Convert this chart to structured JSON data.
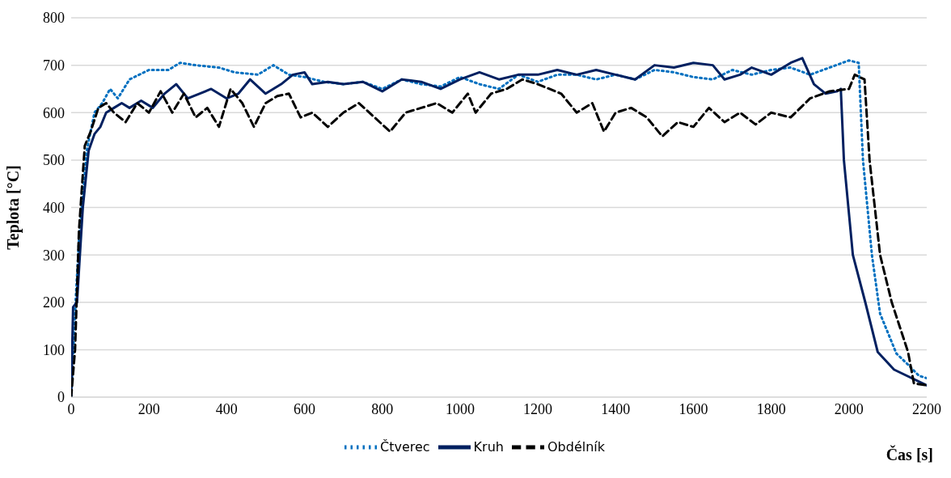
{
  "chart_data": {
    "type": "line",
    "xlabel": "Čas [s]",
    "ylabel": "Teplota [°C]",
    "xlim": [
      0,
      2200
    ],
    "xticks": [
      0,
      200,
      400,
      600,
      800,
      1000,
      1200,
      1400,
      1600,
      1800,
      2000,
      2200
    ],
    "ylim": [
      0,
      800
    ],
    "yticks": [
      0,
      100,
      200,
      300,
      400,
      500,
      600,
      700,
      800
    ],
    "grid": "y",
    "legend": "bottom",
    "marker": "none",
    "series": [
      {
        "name": "Čtverec",
        "color": "#0070c0",
        "line_style": "dotted",
        "x": [
          0,
          10,
          20,
          40,
          60,
          80,
          100,
          120,
          150,
          200,
          250,
          280,
          320,
          380,
          420,
          480,
          520,
          560,
          600,
          650,
          700,
          750,
          800,
          850,
          900,
          950,
          1000,
          1050,
          1100,
          1150,
          1200,
          1250,
          1300,
          1350,
          1400,
          1450,
          1500,
          1550,
          1600,
          1650,
          1700,
          1750,
          1800,
          1850,
          1900,
          1950,
          2000,
          2025,
          2036,
          2059,
          2080,
          2122,
          2150,
          2180,
          2200
        ],
        "values": [
          0,
          180,
          330,
          520,
          600,
          620,
          650,
          630,
          670,
          690,
          690,
          705,
          700,
          695,
          685,
          680,
          700,
          680,
          675,
          665,
          660,
          665,
          650,
          670,
          660,
          655,
          675,
          660,
          650,
          680,
          665,
          680,
          680,
          670,
          680,
          670,
          690,
          685,
          675,
          670,
          690,
          680,
          690,
          695,
          680,
          695,
          710,
          705,
          500,
          300,
          176,
          92,
          70,
          45,
          40
        ]
      },
      {
        "name": "Kruh",
        "color": "#002060",
        "line_style": "solid",
        "x": [
          0,
          5,
          15,
          30,
          45,
          60,
          75,
          90,
          110,
          130,
          150,
          180,
          210,
          240,
          270,
          300,
          330,
          360,
          400,
          430,
          460,
          500,
          540,
          570,
          600,
          620,
          660,
          700,
          750,
          800,
          850,
          900,
          950,
          1000,
          1050,
          1100,
          1150,
          1200,
          1250,
          1300,
          1350,
          1400,
          1450,
          1500,
          1550,
          1600,
          1650,
          1680,
          1720,
          1750,
          1800,
          1850,
          1880,
          1910,
          1940,
          1970,
          1979,
          1987,
          2010,
          2042,
          2074,
          2116,
          2200
        ],
        "values": [
          0,
          190,
          200,
          400,
          520,
          555,
          570,
          600,
          610,
          620,
          610,
          625,
          610,
          640,
          660,
          630,
          640,
          650,
          630,
          640,
          670,
          640,
          660,
          680,
          685,
          660,
          665,
          660,
          665,
          645,
          670,
          665,
          650,
          670,
          685,
          670,
          680,
          680,
          690,
          680,
          690,
          680,
          670,
          700,
          695,
          705,
          700,
          670,
          680,
          695,
          680,
          705,
          715,
          660,
          640,
          645,
          650,
          500,
          300,
          200,
          95,
          58,
          25
        ]
      },
      {
        "name": "Obdélník",
        "color": "#000000",
        "line_style": "dashed",
        "x": [
          0,
          10,
          20,
          35,
          50,
          70,
          90,
          110,
          140,
          170,
          200,
          230,
          260,
          290,
          320,
          350,
          380,
          410,
          440,
          470,
          500,
          530,
          560,
          590,
          620,
          660,
          700,
          740,
          780,
          820,
          860,
          900,
          940,
          980,
          1020,
          1040,
          1080,
          1120,
          1160,
          1200,
          1260,
          1300,
          1340,
          1370,
          1400,
          1440,
          1480,
          1520,
          1560,
          1600,
          1640,
          1680,
          1720,
          1760,
          1800,
          1850,
          1900,
          1950,
          2000,
          2015,
          2040,
          2053,
          2080,
          2110,
          2152,
          2167,
          2200
        ],
        "values": [
          0,
          100,
          350,
          530,
          560,
          610,
          620,
          600,
          580,
          620,
          600,
          645,
          600,
          640,
          590,
          610,
          570,
          650,
          620,
          570,
          620,
          635,
          640,
          590,
          600,
          570,
          600,
          620,
          590,
          560,
          600,
          610,
          620,
          600,
          640,
          600,
          640,
          650,
          670,
          660,
          640,
          600,
          620,
          560,
          600,
          610,
          590,
          550,
          580,
          570,
          610,
          580,
          600,
          575,
          600,
          590,
          630,
          645,
          650,
          680,
          670,
          500,
          300,
          200,
          95,
          29,
          25
        ]
      }
    ]
  }
}
